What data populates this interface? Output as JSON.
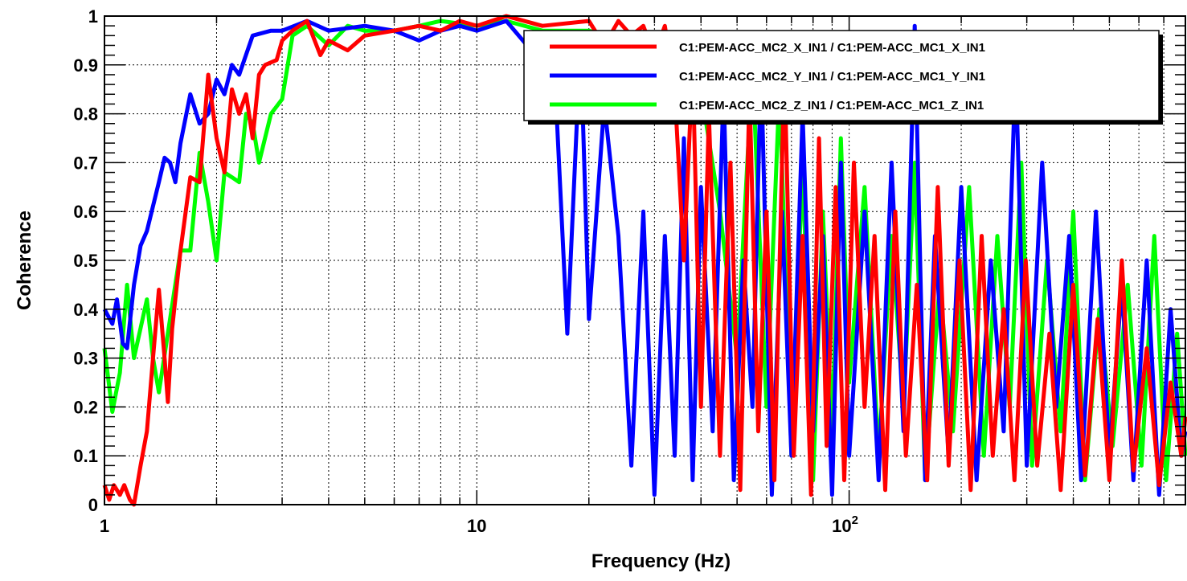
{
  "chart_data": {
    "type": "line",
    "xlabel": "Frequency (Hz)",
    "ylabel": "Coherence",
    "x_scale": "log",
    "xlim": [
      1,
      800
    ],
    "ylim": [
      0,
      1
    ],
    "grid": true,
    "legend_position": "top-right",
    "x_ticks": [
      {
        "value": 1,
        "label": "1"
      },
      {
        "value": 10,
        "label": "10"
      },
      {
        "value": 100,
        "label": "10",
        "exponent": "2"
      }
    ],
    "y_ticks": [
      {
        "value": 0,
        "label": "0"
      },
      {
        "value": 0.1,
        "label": "0.1"
      },
      {
        "value": 0.2,
        "label": "0.2"
      },
      {
        "value": 0.3,
        "label": "0.3"
      },
      {
        "value": 0.4,
        "label": "0.4"
      },
      {
        "value": 0.5,
        "label": "0.5"
      },
      {
        "value": 0.6,
        "label": "0.6"
      },
      {
        "value": 0.7,
        "label": "0.7"
      },
      {
        "value": 0.8,
        "label": "0.8"
      },
      {
        "value": 0.9,
        "label": "0.9"
      },
      {
        "value": 1,
        "label": "1"
      }
    ],
    "series": [
      {
        "name": "C1:PEM-ACC_MC2_Z_IN1 / C1:PEM-ACC_MC1_Z_IN1",
        "color": "#00ff00",
        "points": [
          [
            1.0,
            0.32
          ],
          [
            1.05,
            0.19
          ],
          [
            1.1,
            0.27
          ],
          [
            1.15,
            0.45
          ],
          [
            1.2,
            0.3
          ],
          [
            1.3,
            0.42
          ],
          [
            1.35,
            0.3
          ],
          [
            1.4,
            0.23
          ],
          [
            1.5,
            0.38
          ],
          [
            1.6,
            0.52
          ],
          [
            1.7,
            0.52
          ],
          [
            1.8,
            0.72
          ],
          [
            1.9,
            0.62
          ],
          [
            2.0,
            0.5
          ],
          [
            2.1,
            0.68
          ],
          [
            2.2,
            0.67
          ],
          [
            2.3,
            0.66
          ],
          [
            2.4,
            0.8
          ],
          [
            2.5,
            0.78
          ],
          [
            2.6,
            0.7
          ],
          [
            2.8,
            0.8
          ],
          [
            3.0,
            0.83
          ],
          [
            3.2,
            0.96
          ],
          [
            3.5,
            0.98
          ],
          [
            4.0,
            0.94
          ],
          [
            4.5,
            0.98
          ],
          [
            5.0,
            0.97
          ],
          [
            6.0,
            0.97
          ],
          [
            7.0,
            0.98
          ],
          [
            8.0,
            0.99
          ],
          [
            10.0,
            0.98
          ],
          [
            12.0,
            0.99
          ],
          [
            15.0,
            0.97
          ],
          [
            20.0,
            0.97
          ],
          [
            25.0,
            0.95
          ],
          [
            30.0,
            0.96
          ],
          [
            35.0,
            0.9
          ],
          [
            40.0,
            0.85
          ],
          [
            45.0,
            0.6
          ],
          [
            50.0,
            0.3
          ],
          [
            55.0,
            0.9
          ],
          [
            60.0,
            0.2
          ],
          [
            65.0,
            0.85
          ],
          [
            70.0,
            0.1
          ],
          [
            75.0,
            0.7
          ],
          [
            80.0,
            0.05
          ],
          [
            85.0,
            0.6
          ],
          [
            90.0,
            0.15
          ],
          [
            95.0,
            0.75
          ],
          [
            100.0,
            0.25
          ],
          [
            110.0,
            0.65
          ],
          [
            120.0,
            0.1
          ],
          [
            130.0,
            0.55
          ],
          [
            140.0,
            0.2
          ],
          [
            150.0,
            0.7
          ],
          [
            160.0,
            0.05
          ],
          [
            175.0,
            0.45
          ],
          [
            190.0,
            0.15
          ],
          [
            210.0,
            0.65
          ],
          [
            230.0,
            0.1
          ],
          [
            250.0,
            0.55
          ],
          [
            270.0,
            0.2
          ],
          [
            290.0,
            0.7
          ],
          [
            310.0,
            0.08
          ],
          [
            340.0,
            0.5
          ],
          [
            370.0,
            0.15
          ],
          [
            400.0,
            0.6
          ],
          [
            430.0,
            0.05
          ],
          [
            470.0,
            0.4
          ],
          [
            510.0,
            0.12
          ],
          [
            560.0,
            0.45
          ],
          [
            610.0,
            0.08
          ],
          [
            660.0,
            0.55
          ],
          [
            710.0,
            0.05
          ],
          [
            760.0,
            0.35
          ],
          [
            800.0,
            0.1
          ]
        ]
      },
      {
        "name": "C1:PEM-ACC_MC2_Y_IN1 / C1:PEM-ACC_MC1_Y_IN1",
        "color": "#0000ff",
        "points": [
          [
            1.0,
            0.4
          ],
          [
            1.05,
            0.37
          ],
          [
            1.08,
            0.42
          ],
          [
            1.12,
            0.33
          ],
          [
            1.15,
            0.32
          ],
          [
            1.2,
            0.45
          ],
          [
            1.25,
            0.53
          ],
          [
            1.3,
            0.56
          ],
          [
            1.4,
            0.66
          ],
          [
            1.45,
            0.71
          ],
          [
            1.5,
            0.7
          ],
          [
            1.55,
            0.66
          ],
          [
            1.6,
            0.74
          ],
          [
            1.7,
            0.84
          ],
          [
            1.8,
            0.78
          ],
          [
            1.9,
            0.8
          ],
          [
            2.0,
            0.87
          ],
          [
            2.1,
            0.84
          ],
          [
            2.2,
            0.9
          ],
          [
            2.3,
            0.88
          ],
          [
            2.5,
            0.96
          ],
          [
            2.8,
            0.97
          ],
          [
            3.0,
            0.97
          ],
          [
            3.5,
            0.99
          ],
          [
            4.0,
            0.97
          ],
          [
            5.0,
            0.98
          ],
          [
            6.0,
            0.97
          ],
          [
            7.0,
            0.95
          ],
          [
            8.0,
            0.97
          ],
          [
            9.0,
            0.98
          ],
          [
            10.0,
            0.97
          ],
          [
            12.0,
            0.99
          ],
          [
            14.0,
            0.93
          ],
          [
            16.0,
            0.96
          ],
          [
            17.5,
            0.35
          ],
          [
            19.0,
            0.95
          ],
          [
            20.0,
            0.38
          ],
          [
            22.0,
            0.82
          ],
          [
            24.0,
            0.55
          ],
          [
            26.0,
            0.08
          ],
          [
            28.0,
            0.6
          ],
          [
            30.0,
            0.02
          ],
          [
            32.0,
            0.55
          ],
          [
            34.0,
            0.1
          ],
          [
            36.0,
            0.75
          ],
          [
            38.0,
            0.05
          ],
          [
            40.0,
            0.65
          ],
          [
            43.0,
            0.15
          ],
          [
            46.0,
            0.85
          ],
          [
            49.0,
            0.05
          ],
          [
            52.0,
            0.5
          ],
          [
            55.0,
            0.2
          ],
          [
            58.0,
            0.9
          ],
          [
            62.0,
            0.02
          ],
          [
            66.0,
            0.6
          ],
          [
            70.0,
            0.1
          ],
          [
            75.0,
            0.8
          ],
          [
            80.0,
            0.15
          ],
          [
            85.0,
            0.55
          ],
          [
            90.0,
            0.02
          ],
          [
            95.0,
            0.7
          ],
          [
            100.0,
            0.1
          ],
          [
            110.0,
            0.6
          ],
          [
            120.0,
            0.05
          ],
          [
            130.0,
            0.7
          ],
          [
            140.0,
            0.15
          ],
          [
            150.0,
            0.98
          ],
          [
            160.0,
            0.05
          ],
          [
            170.0,
            0.55
          ],
          [
            185.0,
            0.1
          ],
          [
            200.0,
            0.65
          ],
          [
            220.0,
            0.05
          ],
          [
            240.0,
            0.5
          ],
          [
            260.0,
            0.15
          ],
          [
            280.0,
            0.9
          ],
          [
            300.0,
            0.08
          ],
          [
            330.0,
            0.7
          ],
          [
            360.0,
            0.2
          ],
          [
            390.0,
            0.55
          ],
          [
            420.0,
            0.05
          ],
          [
            460.0,
            0.6
          ],
          [
            500.0,
            0.1
          ],
          [
            540.0,
            0.45
          ],
          [
            580.0,
            0.05
          ],
          [
            630.0,
            0.5
          ],
          [
            680.0,
            0.02
          ],
          [
            730.0,
            0.4
          ],
          [
            780.0,
            0.1
          ],
          [
            800.0,
            0.15
          ]
        ]
      },
      {
        "name": "C1:PEM-ACC_MC2_X_IN1 / C1:PEM-ACC_MC1_X_IN1",
        "color": "#ff0000",
        "points": [
          [
            1.0,
            0.04
          ],
          [
            1.03,
            0.01
          ],
          [
            1.06,
            0.04
          ],
          [
            1.1,
            0.02
          ],
          [
            1.13,
            0.04
          ],
          [
            1.17,
            0.01
          ],
          [
            1.2,
            0.0
          ],
          [
            1.25,
            0.08
          ],
          [
            1.3,
            0.15
          ],
          [
            1.35,
            0.3
          ],
          [
            1.4,
            0.44
          ],
          [
            1.45,
            0.3
          ],
          [
            1.48,
            0.21
          ],
          [
            1.52,
            0.36
          ],
          [
            1.6,
            0.52
          ],
          [
            1.7,
            0.67
          ],
          [
            1.8,
            0.66
          ],
          [
            1.9,
            0.88
          ],
          [
            2.0,
            0.75
          ],
          [
            2.1,
            0.68
          ],
          [
            2.2,
            0.85
          ],
          [
            2.3,
            0.8
          ],
          [
            2.4,
            0.84
          ],
          [
            2.5,
            0.75
          ],
          [
            2.6,
            0.88
          ],
          [
            2.7,
            0.9
          ],
          [
            2.9,
            0.91
          ],
          [
            3.0,
            0.95
          ],
          [
            3.2,
            0.97
          ],
          [
            3.5,
            0.99
          ],
          [
            3.8,
            0.92
          ],
          [
            4.0,
            0.95
          ],
          [
            4.5,
            0.93
          ],
          [
            5.0,
            0.96
          ],
          [
            6.0,
            0.97
          ],
          [
            7.0,
            0.98
          ],
          [
            8.0,
            0.97
          ],
          [
            9.0,
            0.99
          ],
          [
            10.0,
            0.98
          ],
          [
            12.0,
            1.0
          ],
          [
            15.0,
            0.98
          ],
          [
            20.0,
            0.99
          ],
          [
            22.0,
            0.94
          ],
          [
            24.0,
            0.99
          ],
          [
            26.0,
            0.96
          ],
          [
            28.0,
            0.98
          ],
          [
            30.0,
            0.92
          ],
          [
            32.0,
            0.98
          ],
          [
            34.0,
            0.85
          ],
          [
            36.0,
            0.5
          ],
          [
            38.0,
            0.9
          ],
          [
            40.0,
            0.2
          ],
          [
            42.0,
            0.8
          ],
          [
            45.0,
            0.1
          ],
          [
            48.0,
            0.7
          ],
          [
            51.0,
            0.03
          ],
          [
            54.0,
            0.85
          ],
          [
            57.0,
            0.15
          ],
          [
            60.0,
            0.6
          ],
          [
            63.0,
            0.05
          ],
          [
            67.0,
            0.9
          ],
          [
            71.0,
            0.1
          ],
          [
            75.0,
            0.55
          ],
          [
            79.0,
            0.02
          ],
          [
            83.0,
            0.75
          ],
          [
            87.0,
            0.12
          ],
          [
            92.0,
            0.65
          ],
          [
            97.0,
            0.05
          ],
          [
            103.0,
            0.7
          ],
          [
            110.0,
            0.2
          ],
          [
            117.0,
            0.55
          ],
          [
            125.0,
            0.03
          ],
          [
            133.0,
            0.6
          ],
          [
            142.0,
            0.1
          ],
          [
            152.0,
            0.45
          ],
          [
            162.0,
            0.05
          ],
          [
            173.0,
            0.65
          ],
          [
            185.0,
            0.08
          ],
          [
            198.0,
            0.5
          ],
          [
            212.0,
            0.03
          ],
          [
            227.0,
            0.55
          ],
          [
            243.0,
            0.1
          ],
          [
            260.0,
            0.4
          ],
          [
            278.0,
            0.05
          ],
          [
            298.0,
            0.5
          ],
          [
            320.0,
            0.08
          ],
          [
            345.0,
            0.35
          ],
          [
            370.0,
            0.03
          ],
          [
            400.0,
            0.45
          ],
          [
            430.0,
            0.06
          ],
          [
            465.0,
            0.38
          ],
          [
            500.0,
            0.05
          ],
          [
            540.0,
            0.5
          ],
          [
            580.0,
            0.07
          ],
          [
            630.0,
            0.32
          ],
          [
            680.0,
            0.04
          ],
          [
            730.0,
            0.25
          ],
          [
            780.0,
            0.1
          ],
          [
            800.0,
            0.18
          ]
        ]
      }
    ],
    "legend_entries": [
      {
        "label": "C1:PEM-ACC_MC2_X_IN1 / C1:PEM-ACC_MC1_X_IN1",
        "color": "#ff0000"
      },
      {
        "label": "C1:PEM-ACC_MC2_Y_IN1 / C1:PEM-ACC_MC1_Y_IN1",
        "color": "#0000ff"
      },
      {
        "label": "C1:PEM-ACC_MC2_Z_IN1 / C1:PEM-ACC_MC1_Z_IN1",
        "color": "#00ff00"
      }
    ]
  }
}
